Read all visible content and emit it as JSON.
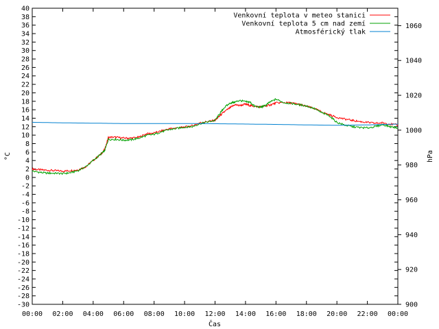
{
  "chart_data": {
    "type": "line",
    "xlabel": "Čas",
    "ylabel_left": "°C",
    "ylabel_right": "hPa",
    "x_ticks": [
      "00:00",
      "02:00",
      "04:00",
      "06:00",
      "08:00",
      "10:00",
      "12:00",
      "14:00",
      "16:00",
      "18:00",
      "20:00",
      "22:00",
      "00:00"
    ],
    "x_range_hours": [
      0,
      24
    ],
    "ylim_left": [
      -30,
      40
    ],
    "y_left_step": 2,
    "ylim_right": [
      900,
      1070
    ],
    "y_right_ticks": [
      900,
      920,
      940,
      960,
      980,
      1000,
      1020,
      1040,
      1060
    ],
    "grid": false,
    "legend_position": "top-right",
    "series": [
      {
        "name": "Venkovní teplota v meteo stanici",
        "axis": "left",
        "color": "#ff0000",
        "x": [
          0,
          0.5,
          1,
          1.5,
          2,
          2.5,
          3,
          3.5,
          4,
          4.5,
          4.75,
          5,
          5.5,
          6,
          6.5,
          7,
          7.5,
          8,
          8.5,
          9,
          9.5,
          10,
          10.5,
          11,
          11.5,
          12,
          12.3,
          12.6,
          13,
          13.3,
          13.6,
          14,
          14.3,
          14.6,
          15,
          15.3,
          15.6,
          16,
          16.5,
          17,
          17.5,
          18,
          18.5,
          19,
          19.5,
          20,
          20.5,
          21,
          21.5,
          22,
          22.5,
          23,
          23.5,
          24
        ],
        "values": [
          2.0,
          1.8,
          1.7,
          1.6,
          1.5,
          1.6,
          1.8,
          2.5,
          4.0,
          5.5,
          6.5,
          9.5,
          9.5,
          9.3,
          9.3,
          9.5,
          10.3,
          10.5,
          11.0,
          11.5,
          11.7,
          11.9,
          12.2,
          12.9,
          13.2,
          13.5,
          14.5,
          15.5,
          16.5,
          17.2,
          17.0,
          17.3,
          17.0,
          16.8,
          16.7,
          16.9,
          17.1,
          17.6,
          17.7,
          17.6,
          17.3,
          16.8,
          16.3,
          15.5,
          14.8,
          14.2,
          13.8,
          13.5,
          13.2,
          13.0,
          12.8,
          12.9,
          12.6,
          12.4
        ]
      },
      {
        "name": "Venkovní teplota 5 cm nad zemí",
        "axis": "left",
        "color": "#00a000",
        "x": [
          0,
          0.5,
          1,
          1.5,
          2,
          2.5,
          3,
          3.5,
          4,
          4.5,
          4.75,
          5,
          5.5,
          6,
          6.5,
          7,
          7.5,
          8,
          8.5,
          9,
          9.5,
          10,
          10.5,
          11,
          11.5,
          12,
          12.3,
          12.6,
          13,
          13.3,
          13.6,
          14,
          14.3,
          14.6,
          15,
          15.3,
          15.6,
          16,
          16.5,
          17,
          17.5,
          18,
          18.5,
          19,
          19.5,
          20,
          20.5,
          21,
          21.5,
          22,
          22.5,
          23,
          23.5,
          24
        ],
        "values": [
          1.5,
          1.2,
          1.0,
          1.0,
          0.9,
          1.1,
          1.6,
          2.5,
          4.0,
          5.5,
          6.3,
          9.0,
          9.0,
          8.8,
          8.9,
          9.3,
          9.9,
          10.2,
          10.8,
          11.3,
          11.6,
          11.9,
          12.0,
          12.7,
          13.1,
          13.5,
          15.0,
          16.5,
          17.6,
          17.8,
          18.2,
          17.9,
          17.8,
          16.8,
          16.6,
          17.0,
          17.8,
          18.5,
          17.7,
          17.5,
          17.2,
          16.9,
          16.3,
          15.3,
          14.6,
          13.0,
          12.4,
          12.0,
          11.8,
          11.7,
          12.0,
          12.5,
          12.0,
          11.7
        ]
      },
      {
        "name": "Atmosférický tlak",
        "axis": "right",
        "color": "#0080d0",
        "x": [
          0,
          2,
          4,
          6,
          8,
          10,
          12,
          14,
          16,
          18,
          20,
          22,
          24
        ],
        "values": [
          1004.5,
          1004.2,
          1004.0,
          1003.8,
          1003.8,
          1003.8,
          1003.7,
          1003.5,
          1003.3,
          1003.0,
          1002.8,
          1003.0,
          1003.5
        ]
      }
    ]
  }
}
